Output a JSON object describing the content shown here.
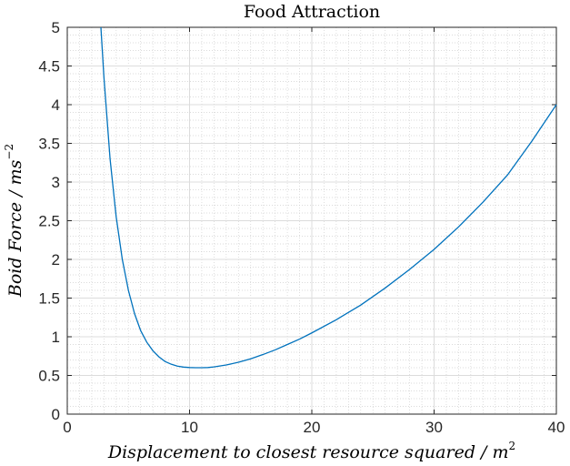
{
  "chart_data": {
    "type": "line",
    "title": "Food Attraction",
    "xlabel": "Displacement to closest resource squared / m",
    "xlabel_sup": "2",
    "ylabel": "Boid Force / ms",
    "ylabel_sup": "−2",
    "xlim": [
      0,
      40
    ],
    "ylim": [
      0,
      5
    ],
    "x_ticks": [
      0,
      10,
      20,
      30,
      40
    ],
    "y_ticks": [
      0,
      0.5,
      1,
      1.5,
      2,
      2.5,
      3,
      3.5,
      4,
      4.5,
      5
    ],
    "grid": true,
    "minor_grid": true,
    "series": [
      {
        "color": "#0072BD",
        "x": [
          2.75,
          3.0,
          3.5,
          4.0,
          4.5,
          5.0,
          5.5,
          6.0,
          6.5,
          7.0,
          7.5,
          8.0,
          8.5,
          9.0,
          9.5,
          10.0,
          10.5,
          11.0,
          11.5,
          12.0,
          13.0,
          14.0,
          15.0,
          16.0,
          17.0,
          18.0,
          19.0,
          20.0,
          22.0,
          24.0,
          26.0,
          28.0,
          30.0,
          32.0,
          34.0,
          36.0,
          38.0,
          40.0
        ],
        "y": [
          5.0,
          4.35,
          3.3,
          2.55,
          2.0,
          1.6,
          1.3,
          1.08,
          0.93,
          0.82,
          0.74,
          0.68,
          0.645,
          0.62,
          0.608,
          0.602,
          0.6,
          0.6,
          0.602,
          0.61,
          0.635,
          0.67,
          0.715,
          0.77,
          0.83,
          0.9,
          0.97,
          1.05,
          1.22,
          1.41,
          1.63,
          1.87,
          2.13,
          2.42,
          2.74,
          3.09,
          3.53,
          4.0
        ]
      }
    ]
  }
}
